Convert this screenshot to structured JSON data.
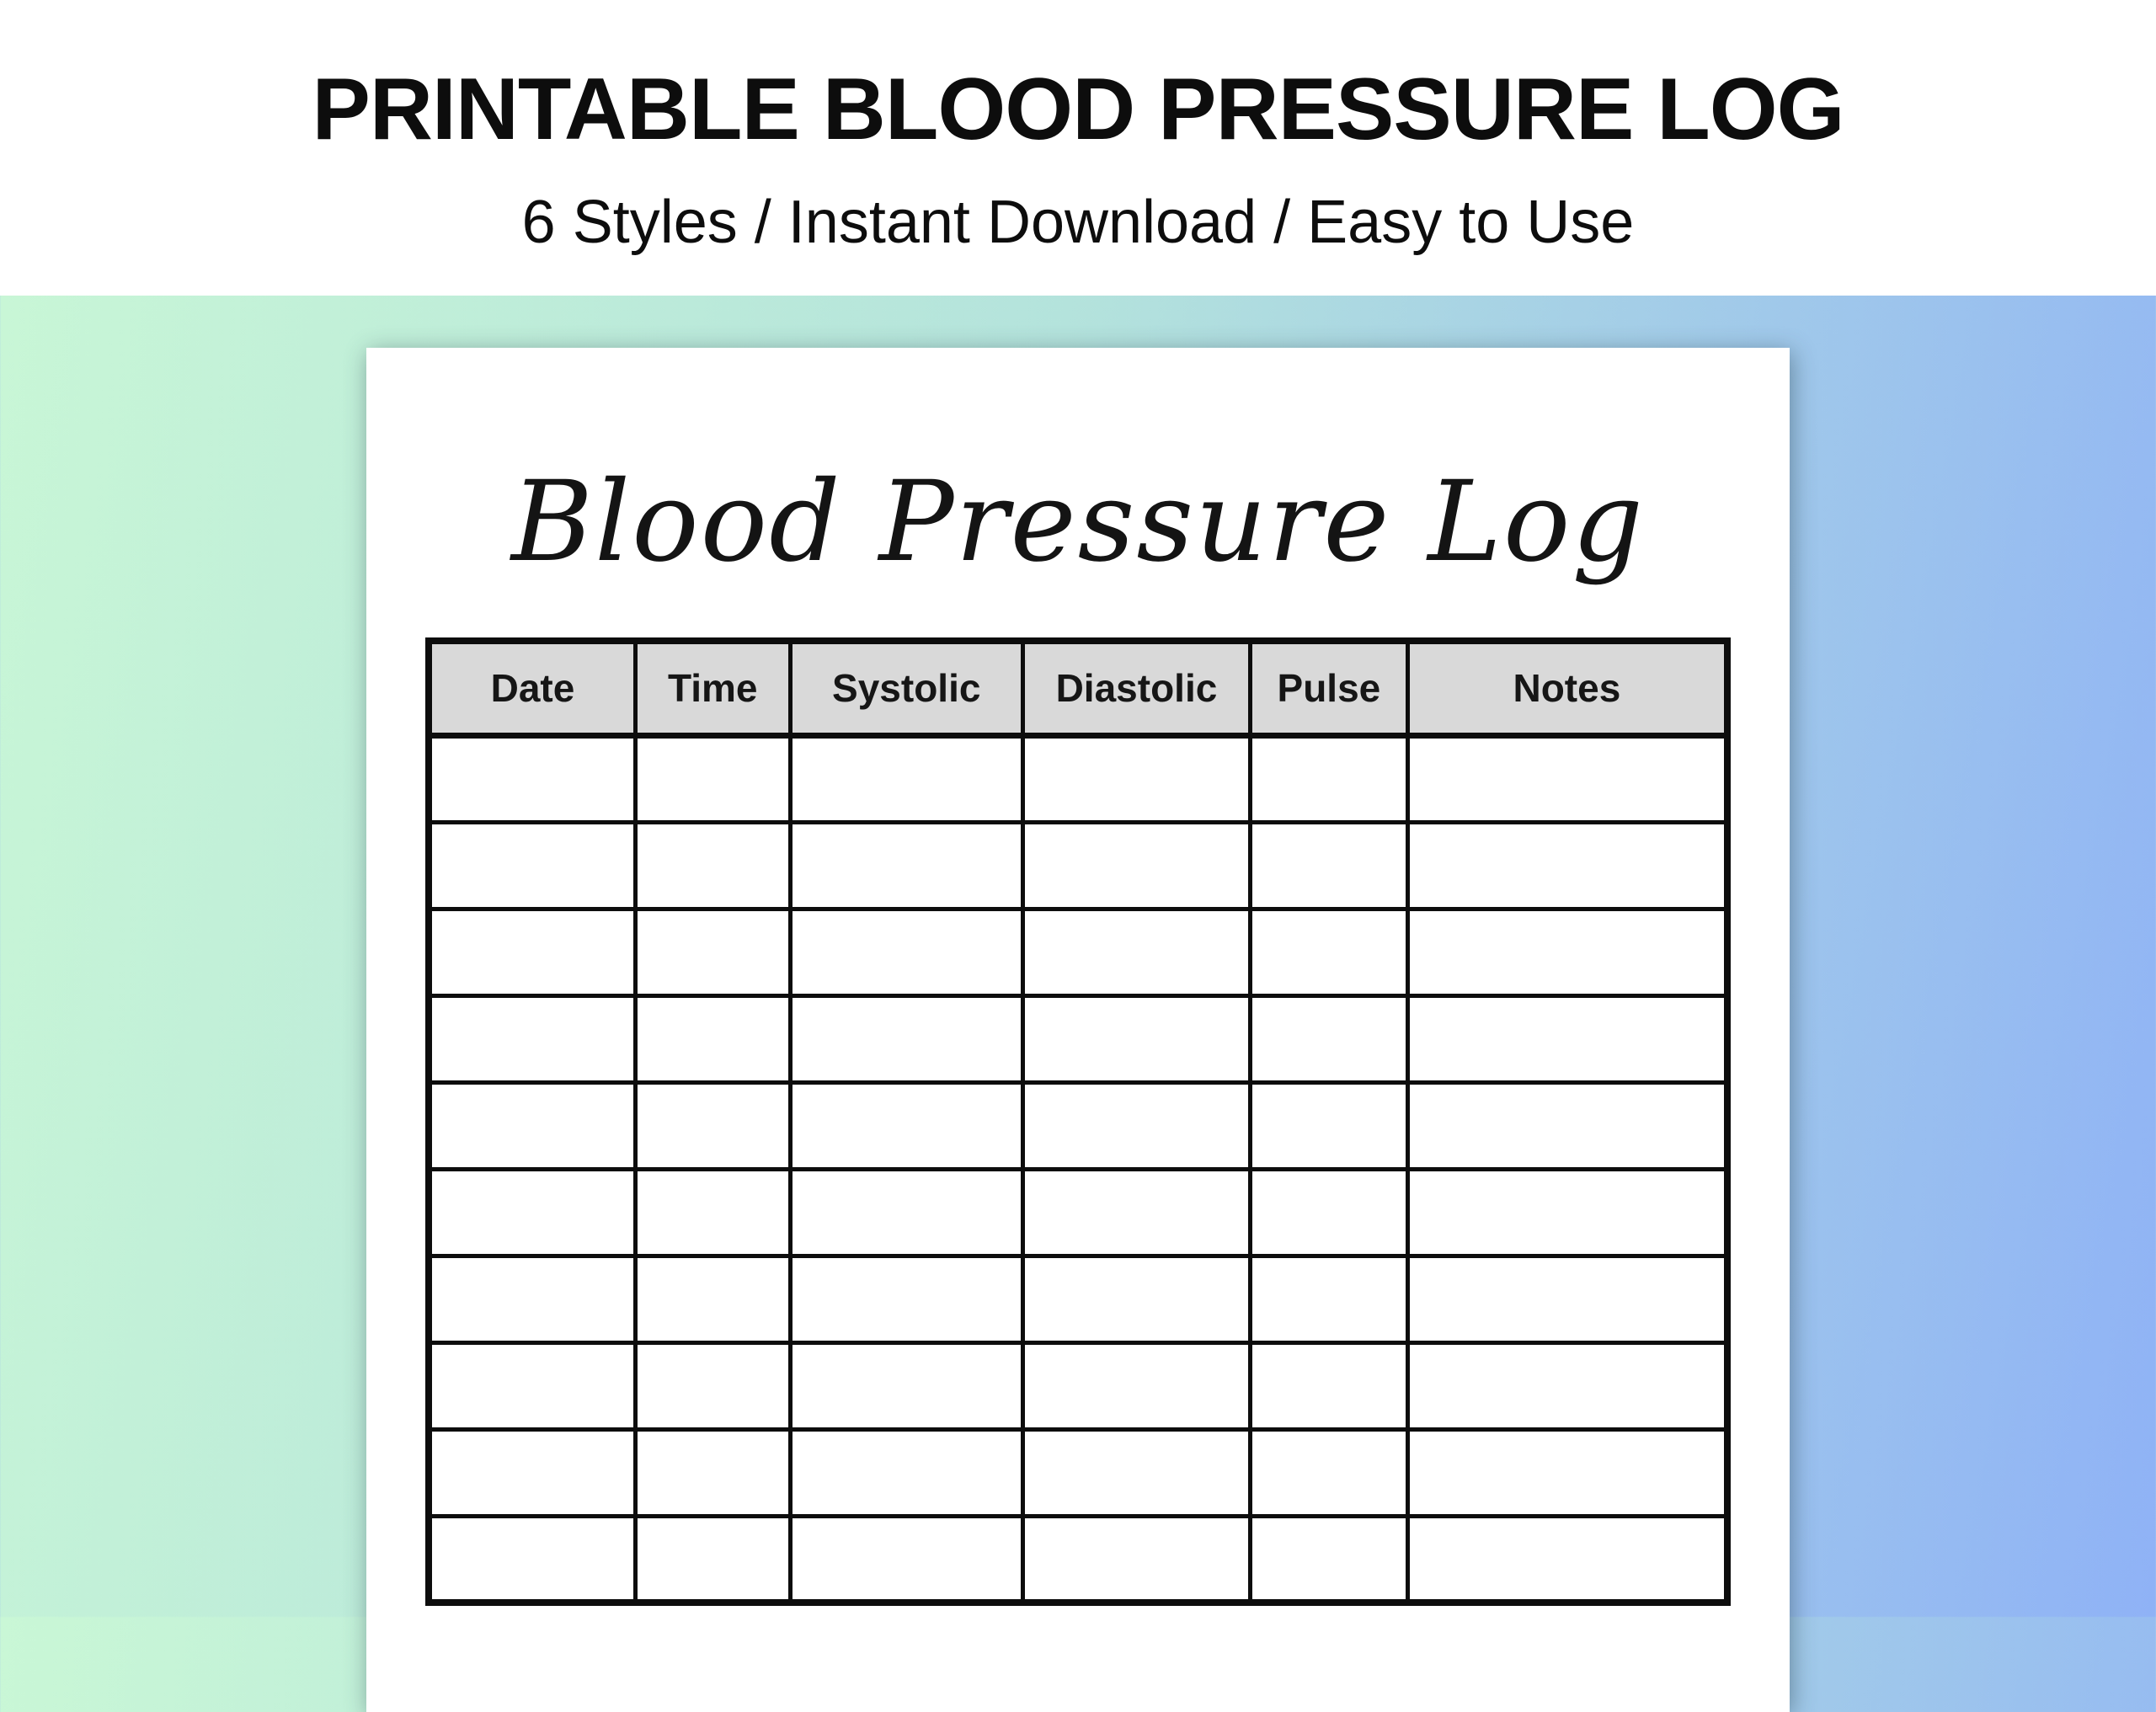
{
  "banner": {
    "title": "PRINTABLE BLOOD PRESSURE LOG",
    "subtitle": "6 Styles / Instant Download / Easy to Use"
  },
  "document": {
    "title": "Blood Pressure Log",
    "table": {
      "columns": [
        "Date",
        "Time",
        "Systolic",
        "Diastolic",
        "Pulse",
        "Notes"
      ],
      "rows": [
        [
          "",
          "",
          "",
          "",
          "",
          ""
        ],
        [
          "",
          "",
          "",
          "",
          "",
          ""
        ],
        [
          "",
          "",
          "",
          "",
          "",
          ""
        ],
        [
          "",
          "",
          "",
          "",
          "",
          ""
        ],
        [
          "",
          "",
          "",
          "",
          "",
          ""
        ],
        [
          "",
          "",
          "",
          "",
          "",
          ""
        ],
        [
          "",
          "",
          "",
          "",
          "",
          ""
        ],
        [
          "",
          "",
          "",
          "",
          "",
          ""
        ],
        [
          "",
          "",
          "",
          "",
          "",
          ""
        ],
        [
          "",
          "",
          "",
          "",
          "",
          ""
        ]
      ]
    }
  },
  "colors": {
    "background_green": "#c9f7d6",
    "background_blue": "#8fb2f6",
    "table_header_gray": "#d9d9d9",
    "border_black": "#0d0d0d",
    "text_black": "#0d0d0d",
    "paper_white": "#ffffff"
  }
}
